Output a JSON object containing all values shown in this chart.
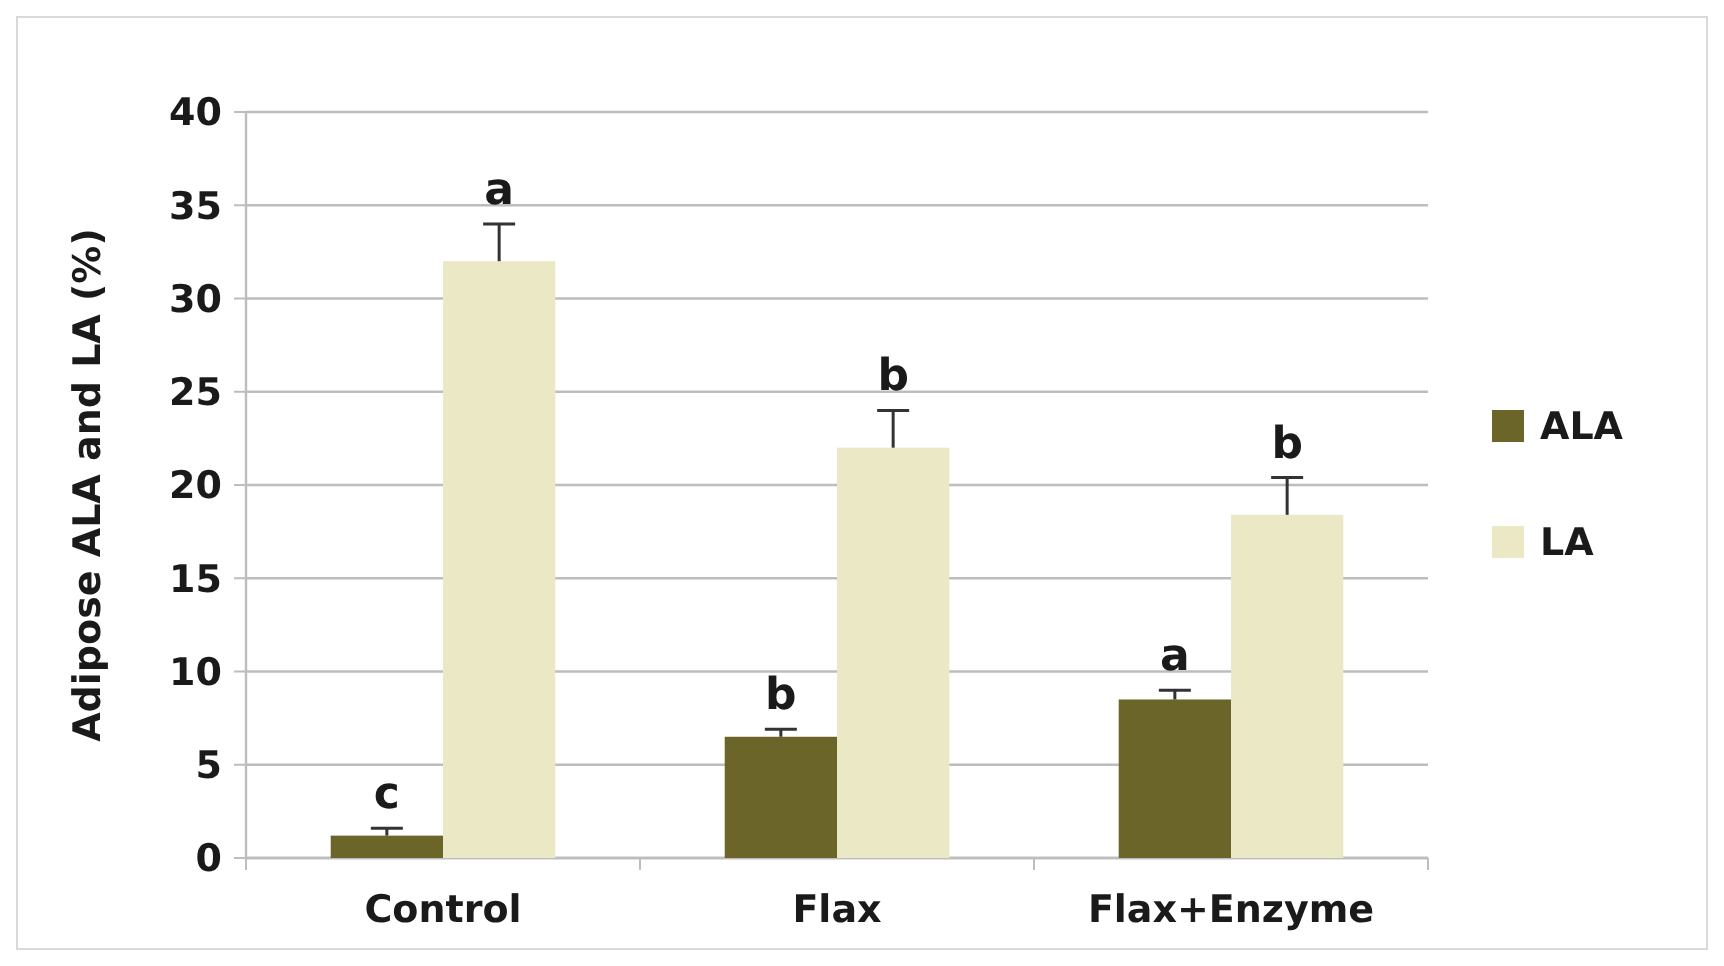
{
  "chart_data": {
    "type": "bar",
    "ylabel": "Adipose ALA and LA (%)",
    "categories": [
      "Control",
      "Flax",
      "Flax+Enzyme"
    ],
    "series": [
      {
        "name": "ALA",
        "color": "#6b6529",
        "values": [
          1.2,
          6.5,
          8.5
        ],
        "errors": [
          0.4,
          0.4,
          0.5
        ]
      },
      {
        "name": "LA",
        "color": "#ebe8c5",
        "values": [
          32,
          22,
          18.4
        ],
        "errors": [
          2,
          2,
          2
        ]
      }
    ],
    "ylim": [
      0,
      40
    ],
    "yticks": [
      0,
      5,
      10,
      15,
      20,
      25,
      30,
      35,
      40
    ],
    "grid": "y",
    "legend": "right",
    "annotations": [
      {
        "text": "c",
        "x": "Control",
        "y": 1.2
      },
      {
        "text": "a",
        "x": "Control",
        "y": 32
      },
      {
        "text": "b",
        "x": "Flax",
        "y": 6.5
      },
      {
        "text": "b",
        "x": "Flax",
        "y": 22
      },
      {
        "text": "a",
        "x": "Flax+Enzyme",
        "y": 8.5
      },
      {
        "text": "b",
        "x": "Flax+Enzyme",
        "y": 18.4
      }
    ]
  }
}
